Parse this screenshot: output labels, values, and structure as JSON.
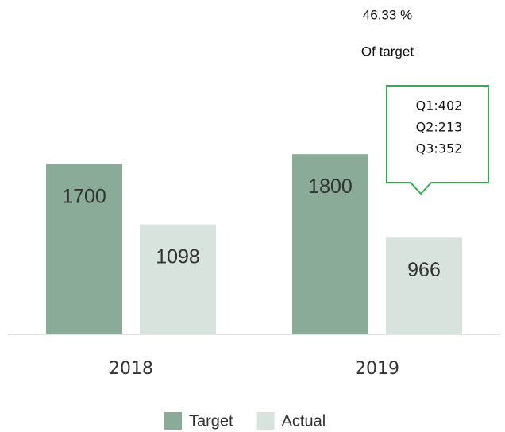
{
  "chart_data": {
    "type": "bar",
    "categories": [
      "2018",
      "2019"
    ],
    "series": [
      {
        "name": "Target",
        "color": "#8aab98",
        "values": [
          1700,
          1800
        ]
      },
      {
        "name": "Actual",
        "color": "#d9e3de",
        "values": [
          1098,
          966
        ]
      }
    ],
    "ylim": [
      0,
      2000
    ],
    "annotations": [
      "46.33 %",
      "Of target"
    ],
    "callout": [
      "Q1:402",
      "Q2:213",
      "Q3:352"
    ],
    "legend": "bottom"
  }
}
